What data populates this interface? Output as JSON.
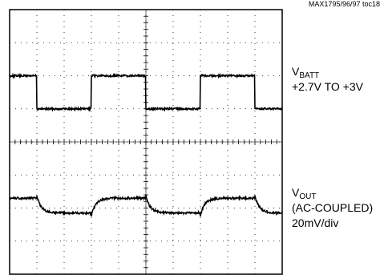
{
  "ref_id": "MAX1795/96/97 toc18",
  "chart_data": {
    "type": "line",
    "title": "",
    "grid": {
      "divisions_x": 10,
      "divisions_y": 8,
      "minor_ticks_per_div": 5,
      "style": "dotted"
    },
    "series": [
      {
        "name_base": "V",
        "name_sub": "BATT",
        "description": "+2.7V TO +3V",
        "kind": "square",
        "levels_div": {
          "high": 6.0,
          "low": 5.0
        },
        "transitions_div": [
          1.0,
          3.0,
          5.0,
          7.0,
          9.0
        ],
        "initial": "high"
      },
      {
        "name_base": "V",
        "name_sub": "OUT",
        "coupling": "(AC-COUPLED)",
        "scale": "20mV/div",
        "kind": "ac-coupled",
        "baseline_div": 1.85,
        "step_div": 0.45,
        "transitions_div": [
          1.0,
          3.0,
          5.0,
          7.0,
          9.0
        ],
        "initial": "high"
      }
    ]
  }
}
